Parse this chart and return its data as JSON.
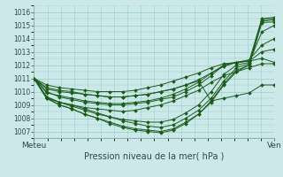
{
  "title": "Pression niveau de la mer( hPa )",
  "xlabel_left": "Meteu",
  "xlabel_right": "Ven",
  "ylim": [
    1006.5,
    1016.5
  ],
  "bg_color": "#cce8e8",
  "grid_color": "#99cccc",
  "line_color": "#1a5c1a",
  "lines": [
    [
      1011.0,
      1010.0,
      1009.6,
      1009.4,
      1009.2,
      1009.1,
      1009.0,
      1009.0,
      1009.1,
      1009.2,
      1009.4,
      1009.6,
      1010.0,
      1010.5,
      1011.2,
      1012.0,
      1012.2,
      1012.3,
      1015.5,
      1015.6
    ],
    [
      1011.0,
      1009.6,
      1009.2,
      1009.0,
      1008.7,
      1008.4,
      1008.1,
      1007.8,
      1007.6,
      1007.4,
      1007.3,
      1007.5,
      1008.0,
      1008.6,
      1009.5,
      1010.8,
      1011.8,
      1012.1,
      1015.4,
      1015.5
    ],
    [
      1011.0,
      1009.5,
      1009.0,
      1008.7,
      1008.3,
      1008.0,
      1007.6,
      1007.3,
      1007.1,
      1007.0,
      1006.9,
      1007.1,
      1007.6,
      1008.3,
      1009.3,
      1010.6,
      1011.6,
      1012.0,
      1015.3,
      1015.4
    ],
    [
      1011.0,
      1009.5,
      1009.0,
      1008.7,
      1008.3,
      1008.0,
      1007.7,
      1007.4,
      1007.2,
      1007.1,
      1007.0,
      1007.2,
      1007.7,
      1008.3,
      1009.2,
      1010.5,
      1011.5,
      1012.0,
      1015.2,
      1015.25
    ],
    [
      1011.0,
      1009.6,
      1009.2,
      1008.9,
      1008.6,
      1008.3,
      1008.1,
      1007.9,
      1007.8,
      1007.7,
      1007.7,
      1007.9,
      1008.4,
      1009.0,
      1010.0,
      1011.3,
      1012.0,
      1012.2,
      1014.5,
      1015.0
    ],
    [
      1011.0,
      1009.9,
      1009.7,
      1009.5,
      1009.3,
      1009.2,
      1009.1,
      1009.1,
      1009.2,
      1009.3,
      1009.5,
      1009.8,
      1010.2,
      1010.7,
      1011.4,
      1012.0,
      1012.2,
      1012.4,
      1013.5,
      1014.0
    ],
    [
      1011.0,
      1010.2,
      1010.0,
      1009.9,
      1009.8,
      1009.7,
      1009.6,
      1009.6,
      1009.7,
      1009.8,
      1010.0,
      1010.2,
      1010.5,
      1010.9,
      1011.4,
      1011.9,
      1012.2,
      1012.3,
      1013.0,
      1013.2
    ],
    [
      1011.0,
      1010.5,
      1010.3,
      1010.2,
      1010.1,
      1010.0,
      1010.0,
      1010.0,
      1010.1,
      1010.3,
      1010.5,
      1010.8,
      1011.1,
      1011.4,
      1011.8,
      1012.1,
      1012.2,
      1012.3,
      1012.5,
      1012.2
    ],
    [
      1011.0,
      1010.3,
      1010.1,
      1010.0,
      1009.8,
      1009.7,
      1009.6,
      1009.6,
      1009.7,
      1009.8,
      1010.0,
      1010.2,
      1010.5,
      1010.8,
      1009.3,
      1009.5,
      1009.7,
      1009.9,
      1010.5,
      1010.5
    ],
    [
      1011.0,
      1009.5,
      1009.2,
      1009.0,
      1008.8,
      1008.7,
      1008.6,
      1008.5,
      1008.6,
      1008.8,
      1009.0,
      1009.3,
      1009.7,
      1010.1,
      1010.7,
      1011.2,
      1011.5,
      1011.8,
      1012.1,
      1012.1
    ]
  ],
  "n_points": 20,
  "figsize": [
    3.2,
    2.0
  ],
  "dpi": 100
}
